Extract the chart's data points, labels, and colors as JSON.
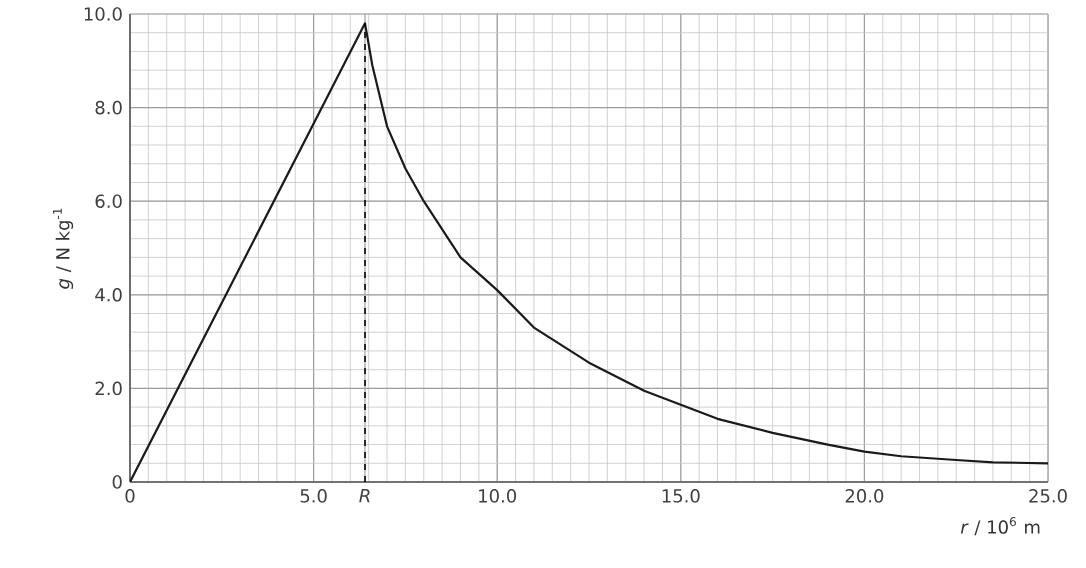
{
  "chart_data": {
    "type": "line",
    "xlabel": "*r* / 10$^{6}$ m",
    "ylabel": "*g* / N kg$^{-1}$",
    "xlim": [
      0,
      25
    ],
    "ylim": [
      0,
      10
    ],
    "xticks": [
      {
        "value": 0,
        "label": "0"
      },
      {
        "value": 5,
        "label": "5.0"
      },
      {
        "value": 6.4,
        "label": "*R*"
      },
      {
        "value": 10,
        "label": "10.0"
      },
      {
        "value": 15,
        "label": "15.0"
      },
      {
        "value": 20,
        "label": "20.0"
      },
      {
        "value": 25,
        "label": "25.0"
      }
    ],
    "yticks": [
      {
        "value": 0,
        "label": "0"
      },
      {
        "value": 2,
        "label": "2.0"
      },
      {
        "value": 4,
        "label": "4.0"
      },
      {
        "value": 6,
        "label": "6.0"
      },
      {
        "value": 8,
        "label": "8.0"
      },
      {
        "value": 10,
        "label": "10.0"
      }
    ],
    "grid": true,
    "marker": "none",
    "line_style": "solid",
    "ref_lines": [
      {
        "axis": "x",
        "value": 6.4,
        "line_style": "dashed",
        "color": "#000000"
      }
    ],
    "series": [
      {
        "color": "#1a1a1a",
        "x": [
          0,
          6.4,
          6.6,
          7,
          7.5,
          8,
          9,
          10,
          11,
          12.5,
          14,
          15,
          16,
          17.5,
          19,
          20,
          21,
          22.5,
          23.5,
          25
        ],
        "values": [
          0,
          9.8,
          8.9,
          7.6,
          6.7,
          6.0,
          4.8,
          4.1,
          3.3,
          2.55,
          1.95,
          1.65,
          1.35,
          1.05,
          0.8,
          0.65,
          0.55,
          0.47,
          0.42,
          0.4
        ]
      }
    ]
  }
}
